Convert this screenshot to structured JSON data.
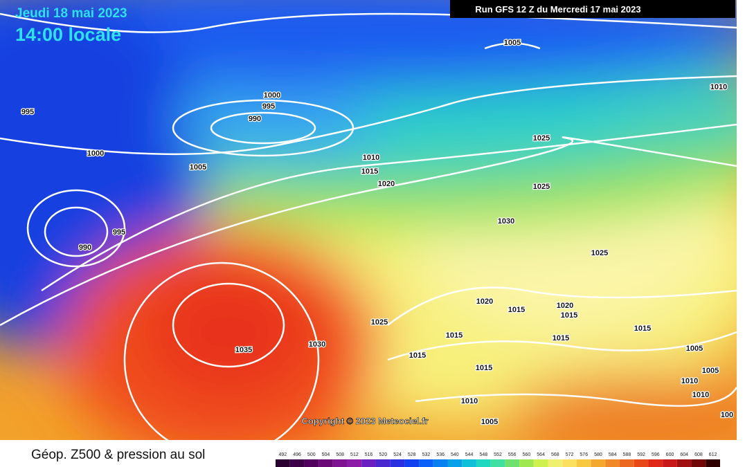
{
  "header": {
    "date": "Jeudi 18 mai 2023",
    "time": "14:00 locale",
    "run": "Run GFS 12 Z du Mercredi 17 mai 2023"
  },
  "isobars": [
    1005,
    1010,
    995,
    1000,
    995,
    990,
    1000,
    1005,
    1010,
    1015,
    1020,
    1025,
    1025,
    1030,
    995,
    990,
    1025,
    1020,
    1015,
    1020,
    1015,
    1025,
    1015,
    1015,
    1015,
    1035,
    1030,
    1015,
    1015,
    1005,
    1005,
    1010,
    1010,
    1010,
    1005,
    100
  ],
  "copyright": "Copyright © 2023 Meteociel.fr",
  "legend": {
    "title": "Géop. Z500 & pression au sol",
    "scale": [
      492,
      496,
      500,
      504,
      508,
      512,
      516,
      520,
      524,
      528,
      532,
      536,
      540,
      544,
      548,
      552,
      556,
      560,
      564,
      568,
      572,
      576,
      580,
      584,
      588,
      592,
      596,
      600,
      604,
      608,
      612
    ]
  }
}
